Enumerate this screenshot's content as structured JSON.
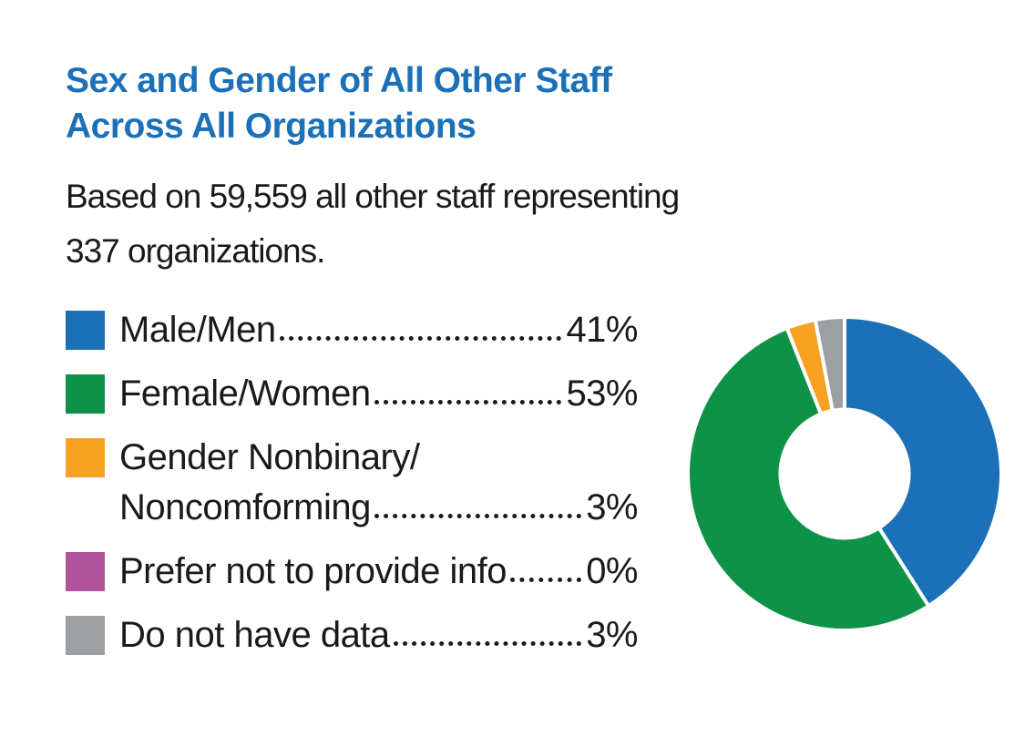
{
  "page": {
    "background": "#ffffff",
    "text_color": "#1a1a1a"
  },
  "header": {
    "title": "Sex and Gender of All Other Staff\nAcross All Organizations",
    "title_color": "#1b70b8",
    "subtitle": "Based on 59,559 all other staff representing\n337 organizations."
  },
  "legend": {
    "items": [
      {
        "label_lines": [
          "Male/Men"
        ],
        "pct_label": "41%",
        "color": "#1b70b8"
      },
      {
        "label_lines": [
          "Female/Women"
        ],
        "pct_label": "53%",
        "color": "#0d9247"
      },
      {
        "label_lines": [
          "Gender Nonbinary/",
          "Noncomforming"
        ],
        "pct_label": "3%",
        "color": "#f7a123"
      },
      {
        "label_lines": [
          "Prefer not to provide info"
        ],
        "pct_label": "0%",
        "color": "#b0539b"
      },
      {
        "label_lines": [
          "Do not have data"
        ],
        "pct_label": "3%",
        "color": "#9da0a3"
      }
    ]
  },
  "chart_data": {
    "type": "pie",
    "variant": "donut",
    "title": "Sex and Gender of All Other Staff Across All Organizations",
    "subtitle": "Based on 59,559 all other staff representing 337 organizations.",
    "categories": [
      "Male/Men",
      "Female/Women",
      "Gender Nonbinary/Noncomforming",
      "Prefer not to provide info",
      "Do not have data"
    ],
    "values": [
      41,
      53,
      3,
      0,
      3
    ],
    "unit": "%",
    "colors": [
      "#1b70b8",
      "#0d9247",
      "#f7a123",
      "#b0539b",
      "#9da0a3"
    ],
    "start_angle_deg": 0,
    "direction": "clockwise",
    "inner_radius_ratio": 0.41,
    "segment_gap_color": "#ffffff",
    "legend_position": "left"
  }
}
